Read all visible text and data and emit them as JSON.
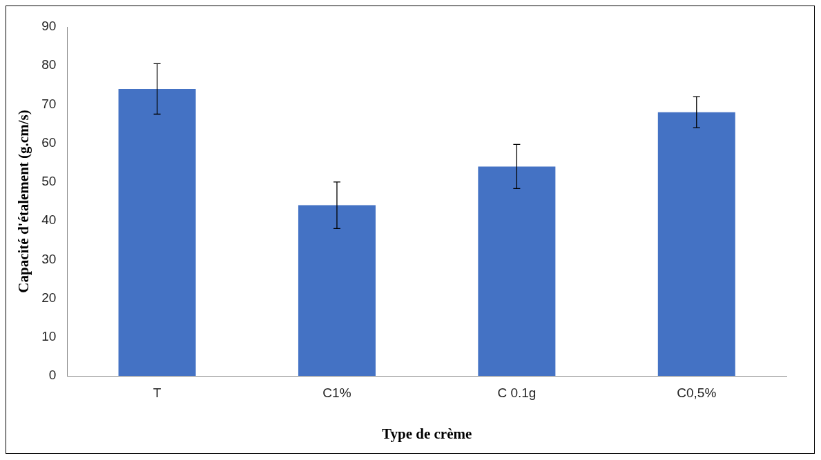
{
  "chart_data": {
    "type": "bar",
    "xlabel": "Type de crème",
    "ylabel": "Capacité d'étalement (g.cm/s)",
    "categories": [
      "T",
      "C1%",
      "C 0.1g",
      "C0,5%"
    ],
    "values": [
      74,
      44,
      54,
      68
    ],
    "errors": [
      6.5,
      6,
      5.7,
      4
    ],
    "color": "#4472c4",
    "ylim": [
      0,
      90
    ],
    "yticks": [
      0,
      10,
      20,
      30,
      40,
      50,
      60,
      70,
      80,
      90
    ],
    "grid": false,
    "legend": false
  }
}
